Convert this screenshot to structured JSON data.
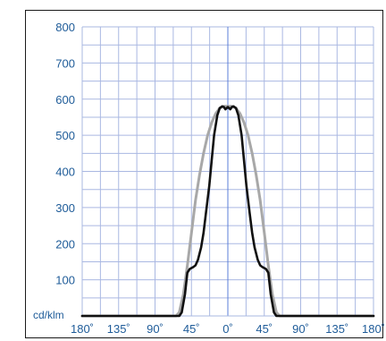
{
  "chart_data": {
    "type": "line",
    "title": "",
    "xlabel": "",
    "ylabel": "cd/klm",
    "ylim": [
      0,
      800
    ],
    "xlim": [
      -180,
      180
    ],
    "y_ticks": [
      "100",
      "200",
      "300",
      "400",
      "500",
      "600",
      "700",
      "800"
    ],
    "x_ticks": [
      "180˚",
      "135˚",
      "90˚",
      "45˚",
      "0˚",
      "45˚",
      "90˚",
      "135˚",
      "180˚"
    ],
    "grid": true,
    "colors": {
      "grid": "#aab8e2",
      "axis_text": "#1f5c99",
      "center_line": "#5b7fd8"
    },
    "series": [
      {
        "color": "#111111",
        "x": [
          -180,
          -60,
          -57,
          -53,
          -50,
          -47,
          -43,
          -40,
          -37,
          -33,
          -30,
          -27,
          -23,
          -20,
          -17,
          -13,
          -10,
          -7,
          -5,
          -3,
          0,
          3,
          5,
          7,
          10,
          13,
          17,
          20,
          23,
          27,
          30,
          33,
          37,
          40,
          43,
          47,
          50,
          53,
          57,
          60,
          180
        ],
        "y": [
          0,
          0,
          10,
          60,
          120,
          130,
          135,
          140,
          155,
          190,
          230,
          285,
          360,
          430,
          500,
          555,
          575,
          580,
          578,
          572,
          578,
          572,
          578,
          580,
          575,
          555,
          500,
          430,
          360,
          285,
          230,
          190,
          155,
          140,
          135,
          130,
          120,
          60,
          10,
          0,
          0
        ]
      },
      {
        "color": "#a8a8a8",
        "x": [
          -180,
          -64,
          -60,
          -55,
          -50,
          -45,
          -40,
          -35,
          -30,
          -25,
          -20,
          -15,
          -10,
          -5,
          0,
          5,
          10,
          15,
          20,
          25,
          30,
          35,
          40,
          45,
          50,
          55,
          60,
          64,
          180
        ],
        "y": [
          0,
          0,
          10,
          60,
          140,
          230,
          320,
          390,
          450,
          500,
          535,
          560,
          575,
          580,
          580,
          580,
          575,
          560,
          535,
          500,
          450,
          390,
          320,
          230,
          140,
          60,
          10,
          0,
          0
        ]
      }
    ]
  }
}
